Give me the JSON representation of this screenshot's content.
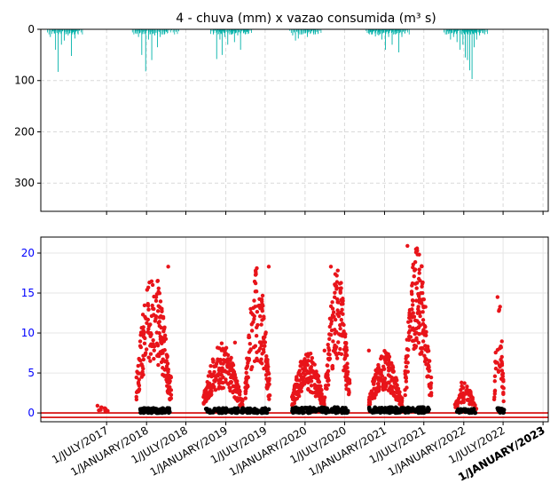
{
  "chart_data": [
    {
      "type": "bar",
      "title": "4 - chuva (mm) x vazao consumida (m³ s)",
      "ylim": [
        355,
        0
      ],
      "y_inverted": true,
      "yticks": [
        0,
        100,
        200,
        300
      ],
      "grid": "dashed",
      "bar_color": "#00b2a9",
      "x_range": [
        "2016-09-01",
        "2023-01-25"
      ],
      "series": [
        {
          "values": [
            {
              "x": "2016-10-15",
              "y": 15
            },
            {
              "x": "2016-11-08",
              "y": 40
            },
            {
              "x": "2016-11-20",
              "y": 83
            },
            {
              "x": "2016-12-05",
              "y": 30
            },
            {
              "x": "2016-12-18",
              "y": 22
            },
            {
              "x": "2017-01-05",
              "y": 12
            },
            {
              "x": "2017-01-20",
              "y": 52
            },
            {
              "x": "2017-02-05",
              "y": 18
            },
            {
              "x": "2017-02-20",
              "y": 10
            },
            {
              "x": "2017-11-10",
              "y": 8
            },
            {
              "x": "2017-11-25",
              "y": 15
            },
            {
              "x": "2017-12-10",
              "y": 50
            },
            {
              "x": "2017-12-28",
              "y": 82
            },
            {
              "x": "2018-01-10",
              "y": 20
            },
            {
              "x": "2018-01-25",
              "y": 60
            },
            {
              "x": "2018-02-08",
              "y": 12
            },
            {
              "x": "2018-02-20",
              "y": 35
            },
            {
              "x": "2018-03-05",
              "y": 15
            },
            {
              "x": "2018-03-18",
              "y": 10
            },
            {
              "x": "2018-04-02",
              "y": 5
            },
            {
              "x": "2018-05-10",
              "y": 3
            },
            {
              "x": "2018-11-05",
              "y": 10
            },
            {
              "x": "2018-11-20",
              "y": 58
            },
            {
              "x": "2018-12-05",
              "y": 20
            },
            {
              "x": "2018-12-15",
              "y": 50
            },
            {
              "x": "2018-12-28",
              "y": 15
            },
            {
              "x": "2019-01-10",
              "y": 30
            },
            {
              "x": "2019-01-25",
              "y": 10
            },
            {
              "x": "2019-02-10",
              "y": 25
            },
            {
              "x": "2019-02-25",
              "y": 12
            },
            {
              "x": "2019-03-10",
              "y": 40
            },
            {
              "x": "2019-03-25",
              "y": 8
            },
            {
              "x": "2019-04-10",
              "y": 5
            },
            {
              "x": "2019-11-05",
              "y": 12
            },
            {
              "x": "2019-11-18",
              "y": 22
            },
            {
              "x": "2019-12-01",
              "y": 18
            },
            {
              "x": "2019-12-14",
              "y": 10
            },
            {
              "x": "2019-12-28",
              "y": 8
            },
            {
              "x": "2020-01-12",
              "y": 15
            },
            {
              "x": "2020-01-26",
              "y": 6
            },
            {
              "x": "2020-02-10",
              "y": 10
            },
            {
              "x": "2020-02-24",
              "y": 5
            },
            {
              "x": "2020-10-20",
              "y": 8
            },
            {
              "x": "2020-11-05",
              "y": 10
            },
            {
              "x": "2020-11-20",
              "y": 14
            },
            {
              "x": "2020-12-05",
              "y": 12
            },
            {
              "x": "2020-12-20",
              "y": 20
            },
            {
              "x": "2021-01-05",
              "y": 40
            },
            {
              "x": "2021-01-20",
              "y": 15
            },
            {
              "x": "2021-02-05",
              "y": 30
            },
            {
              "x": "2021-02-20",
              "y": 10
            },
            {
              "x": "2021-03-08",
              "y": 45
            },
            {
              "x": "2021-03-22",
              "y": 15
            },
            {
              "x": "2021-04-05",
              "y": 8
            },
            {
              "x": "2021-10-15",
              "y": 10
            },
            {
              "x": "2021-11-01",
              "y": 20
            },
            {
              "x": "2021-11-15",
              "y": 15
            },
            {
              "x": "2021-12-01",
              "y": 25
            },
            {
              "x": "2021-12-15",
              "y": 40
            },
            {
              "x": "2021-12-28",
              "y": 30
            },
            {
              "x": "2022-01-08",
              "y": 55
            },
            {
              "x": "2022-01-18",
              "y": 60
            },
            {
              "x": "2022-01-28",
              "y": 80
            },
            {
              "x": "2022-02-08",
              "y": 97
            },
            {
              "x": "2022-02-18",
              "y": 35
            },
            {
              "x": "2022-03-01",
              "y": 20
            },
            {
              "x": "2022-03-15",
              "y": 12
            },
            {
              "x": "2022-04-01",
              "y": 8
            }
          ]
        }
      ]
    },
    {
      "type": "scatter",
      "ylim": [
        -1.1,
        22
      ],
      "yticks": [
        0,
        5,
        10,
        15,
        20
      ],
      "grid": "solid",
      "x_range": [
        "2016-09-01",
        "2023-01-25"
      ],
      "xtick_labels": [
        "1/JULY/2017",
        "1/JANUARY/2018",
        "1/JULY/2018",
        "1/JANUARY/2019",
        "1/JULY/2019",
        "1/JANUARY/2020",
        "1/JULY/2020",
        "1/JANUARY/2021",
        "1/JULY/2021",
        "1/JANUARY/2022",
        "1/JULY/2022",
        "1/JANUARY/2023",
        "1/JANUARY/2023"
      ],
      "xtick_dates": [
        "2017-07-01",
        "2018-01-01",
        "2018-07-01",
        "2019-01-01",
        "2019-07-01",
        "2020-01-01",
        "2020-07-01",
        "2021-01-01",
        "2021-07-01",
        "2022-01-01",
        "2022-07-01",
        "2023-01-01",
        "2023-01-01"
      ],
      "hlines": [
        {
          "y": 0.0,
          "color": "#d40000"
        },
        {
          "y": -0.55,
          "color": "#d40000"
        }
      ],
      "clusters": [
        {
          "color": "#e8141a",
          "from": "2017-05-20",
          "to": "2017-07-10",
          "peak": 0.9,
          "count": 14
        },
        {
          "color": "#e8141a",
          "from": "2017-11-15",
          "to": "2018-04-25",
          "peak": 18.3,
          "count": 190
        },
        {
          "color": "#e8141a",
          "from": "2018-09-20",
          "to": "2019-03-20",
          "peak": 8.8,
          "count": 210
        },
        {
          "color": "#e8141a",
          "from": "2019-04-01",
          "to": "2019-07-25",
          "peak": 18.3,
          "count": 140
        },
        {
          "color": "#e8141a",
          "from": "2019-11-01",
          "to": "2020-04-01",
          "peak": 7.8,
          "count": 200
        },
        {
          "color": "#e8141a",
          "from": "2020-04-05",
          "to": "2020-07-25",
          "peak": 18.3,
          "count": 150
        },
        {
          "color": "#e8141a",
          "from": "2020-10-20",
          "to": "2021-03-25",
          "peak": 7.8,
          "count": 180
        },
        {
          "color": "#e8141a",
          "from": "2021-04-05",
          "to": "2021-08-05",
          "peak": 20.9,
          "count": 170
        },
        {
          "color": "#e8141a",
          "from": "2021-11-20",
          "to": "2022-02-28",
          "peak": 3.8,
          "count": 70
        },
        {
          "color": "#e8141a",
          "from": "2022-05-20",
          "to": "2022-07-05",
          "peak": 14.5,
          "count": 45
        },
        {
          "color": "#000000",
          "from": "2017-12-01",
          "to": "2018-04-20",
          "peak": 0.6,
          "count": 90
        },
        {
          "color": "#000000",
          "from": "2018-10-01",
          "to": "2019-07-20",
          "peak": 0.6,
          "count": 120
        },
        {
          "color": "#000000",
          "from": "2019-11-01",
          "to": "2020-07-20",
          "peak": 0.7,
          "count": 120
        },
        {
          "color": "#000000",
          "from": "2020-10-20",
          "to": "2021-07-25",
          "peak": 0.7,
          "count": 120
        },
        {
          "color": "#000000",
          "from": "2021-12-01",
          "to": "2022-02-25",
          "peak": 0.5,
          "count": 40
        },
        {
          "color": "#000000",
          "from": "2022-06-05",
          "to": "2022-07-05",
          "peak": 0.6,
          "count": 20
        }
      ]
    }
  ]
}
